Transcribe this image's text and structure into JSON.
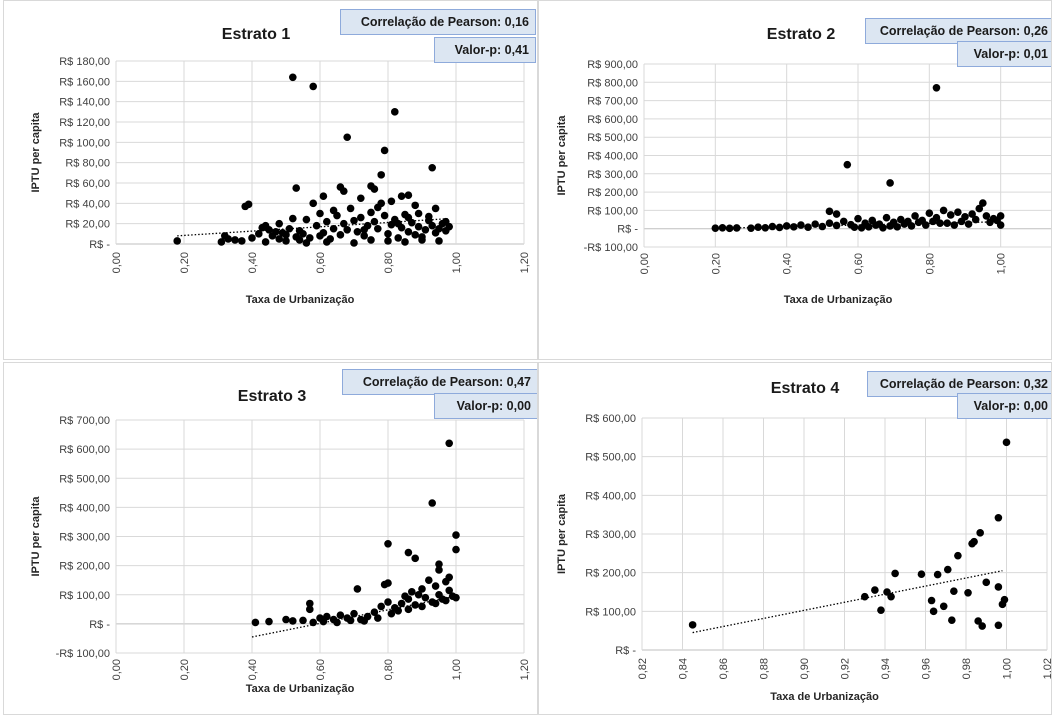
{
  "chart_data": [
    {
      "type": "scatter",
      "title": "Estrato 1",
      "xlabel": "Taxa de Urbanização",
      "ylabel": "IPTU per capita",
      "xlim": [
        0,
        1.2
      ],
      "ylim": [
        0,
        180
      ],
      "x_ticks": [
        "0,00",
        "0,20",
        "0,40",
        "0,60",
        "0,80",
        "1,00",
        "1,20"
      ],
      "y_ticks": [
        "R$ -",
        "R$ 20,00",
        "R$ 40,00",
        "R$ 60,00",
        "R$ 80,00",
        "R$ 100,00",
        "R$ 120,00",
        "R$ 140,00",
        "R$ 160,00",
        "R$ 180,00"
      ],
      "pearson_label": "Correlação de Pearson: 0,16",
      "pvalue_label": "Valor-p: 0,41",
      "trend": [
        [
          0.18,
          8
        ],
        [
          0.98,
          25
        ]
      ],
      "points": [
        [
          0.52,
          164
        ],
        [
          0.58,
          155
        ],
        [
          0.68,
          105
        ],
        [
          0.82,
          130
        ],
        [
          0.79,
          92
        ],
        [
          0.93,
          75
        ],
        [
          0.38,
          37
        ],
        [
          0.39,
          39
        ],
        [
          0.53,
          55
        ],
        [
          0.66,
          56
        ],
        [
          0.67,
          52
        ],
        [
          0.75,
          57
        ],
        [
          0.76,
          54
        ],
        [
          0.78,
          68
        ],
        [
          0.61,
          47
        ],
        [
          0.72,
          45
        ],
        [
          0.84,
          47
        ],
        [
          0.86,
          48
        ],
        [
          0.88,
          38
        ],
        [
          0.94,
          35
        ],
        [
          0.18,
          3
        ],
        [
          0.31,
          2
        ],
        [
          0.32,
          8
        ],
        [
          0.33,
          5
        ],
        [
          0.35,
          4
        ],
        [
          0.37,
          3
        ],
        [
          0.4,
          6
        ],
        [
          0.42,
          10
        ],
        [
          0.43,
          16
        ],
        [
          0.44,
          18
        ],
        [
          0.45,
          14
        ],
        [
          0.46,
          8
        ],
        [
          0.47,
          12
        ],
        [
          0.48,
          5
        ],
        [
          0.49,
          11
        ],
        [
          0.5,
          9
        ],
        [
          0.51,
          15
        ],
        [
          0.52,
          25
        ],
        [
          0.53,
          7
        ],
        [
          0.54,
          13
        ],
        [
          0.55,
          10
        ],
        [
          0.56,
          24
        ],
        [
          0.57,
          6
        ],
        [
          0.58,
          40
        ],
        [
          0.59,
          18
        ],
        [
          0.6,
          30
        ],
        [
          0.61,
          11
        ],
        [
          0.62,
          22
        ],
        [
          0.63,
          5
        ],
        [
          0.64,
          15
        ],
        [
          0.65,
          28
        ],
        [
          0.66,
          9
        ],
        [
          0.67,
          20
        ],
        [
          0.68,
          14
        ],
        [
          0.69,
          35
        ],
        [
          0.7,
          23
        ],
        [
          0.71,
          12
        ],
        [
          0.72,
          26
        ],
        [
          0.73,
          8
        ],
        [
          0.74,
          18
        ],
        [
          0.75,
          31
        ],
        [
          0.76,
          22
        ],
        [
          0.77,
          15
        ],
        [
          0.78,
          40
        ],
        [
          0.79,
          28
        ],
        [
          0.8,
          10
        ],
        [
          0.81,
          19
        ],
        [
          0.82,
          24
        ],
        [
          0.83,
          6
        ],
        [
          0.84,
          16
        ],
        [
          0.85,
          29
        ],
        [
          0.86,
          12
        ],
        [
          0.87,
          21
        ],
        [
          0.88,
          9
        ],
        [
          0.89,
          17
        ],
        [
          0.9,
          7
        ],
        [
          0.91,
          14
        ],
        [
          0.92,
          27
        ],
        [
          0.93,
          18
        ],
        [
          0.94,
          11
        ],
        [
          0.95,
          15
        ],
        [
          0.96,
          20
        ],
        [
          0.97,
          13
        ],
        [
          0.98,
          17
        ],
        [
          0.44,
          2
        ],
        [
          0.5,
          3
        ],
        [
          0.56,
          1
        ],
        [
          0.62,
          2
        ],
        [
          0.7,
          1
        ],
        [
          0.75,
          4
        ],
        [
          0.8,
          3
        ],
        [
          0.85,
          2
        ],
        [
          0.9,
          4
        ],
        [
          0.95,
          3
        ],
        [
          0.48,
          20
        ],
        [
          0.54,
          4
        ],
        [
          0.6,
          8
        ],
        [
          0.64,
          33
        ],
        [
          0.73,
          14
        ],
        [
          0.77,
          36
        ],
        [
          0.81,
          42
        ],
        [
          0.83,
          20
        ],
        [
          0.86,
          26
        ],
        [
          0.89,
          30
        ],
        [
          0.92,
          23
        ],
        [
          0.97,
          22
        ]
      ]
    },
    {
      "type": "scatter",
      "title": "Estrato 2",
      "xlabel": "Taxa de Urbanização",
      "ylabel": "IPTU per capita",
      "xlim": [
        0,
        1.2
      ],
      "ylim": [
        -100,
        900
      ],
      "x_ticks": [
        "0,00",
        "0,20",
        "0,40",
        "0,60",
        "0,80",
        "1,00",
        "1,20"
      ],
      "y_ticks": [
        "-R$ 100,00",
        "R$ -",
        "R$ 100,00",
        "R$ 200,00",
        "R$ 300,00",
        "R$ 400,00",
        "R$ 500,00",
        "R$ 600,00",
        "R$ 700,00",
        "R$ 800,00",
        "R$ 900,00"
      ],
      "pearson_label": "Correlação de Pearson: 0,26",
      "pvalue_label": "Valor-p: 0,01",
      "trend": [
        [
          0.2,
          2
        ],
        [
          1.0,
          38
        ]
      ],
      "points": [
        [
          0.82,
          770
        ],
        [
          0.57,
          350
        ],
        [
          0.69,
          250
        ],
        [
          0.52,
          95
        ],
        [
          0.54,
          80
        ],
        [
          0.2,
          3
        ],
        [
          0.22,
          5
        ],
        [
          0.24,
          2
        ],
        [
          0.26,
          4
        ],
        [
          0.3,
          3
        ],
        [
          0.32,
          8
        ],
        [
          0.34,
          5
        ],
        [
          0.36,
          12
        ],
        [
          0.38,
          7
        ],
        [
          0.4,
          15
        ],
        [
          0.42,
          10
        ],
        [
          0.44,
          20
        ],
        [
          0.46,
          8
        ],
        [
          0.48,
          25
        ],
        [
          0.5,
          12
        ],
        [
          0.52,
          30
        ],
        [
          0.54,
          18
        ],
        [
          0.56,
          40
        ],
        [
          0.58,
          22
        ],
        [
          0.6,
          55
        ],
        [
          0.62,
          30
        ],
        [
          0.64,
          45
        ],
        [
          0.66,
          25
        ],
        [
          0.68,
          60
        ],
        [
          0.7,
          35
        ],
        [
          0.72,
          50
        ],
        [
          0.74,
          40
        ],
        [
          0.76,
          70
        ],
        [
          0.78,
          45
        ],
        [
          0.8,
          85
        ],
        [
          0.82,
          60
        ],
        [
          0.84,
          100
        ],
        [
          0.86,
          75
        ],
        [
          0.88,
          90
        ],
        [
          0.9,
          65
        ],
        [
          0.92,
          80
        ],
        [
          0.94,
          110
        ],
        [
          0.95,
          140
        ],
        [
          0.96,
          70
        ],
        [
          0.98,
          55
        ],
        [
          1.0,
          70
        ],
        [
          1.0,
          20
        ],
        [
          0.85,
          30
        ],
        [
          0.87,
          20
        ],
        [
          0.89,
          40
        ],
        [
          0.91,
          25
        ],
        [
          0.93,
          50
        ],
        [
          0.79,
          20
        ],
        [
          0.77,
          35
        ],
        [
          0.75,
          15
        ],
        [
          0.73,
          25
        ],
        [
          0.71,
          10
        ],
        [
          0.69,
          15
        ],
        [
          0.67,
          5
        ],
        [
          0.65,
          20
        ],
        [
          0.63,
          10
        ],
        [
          0.61,
          5
        ],
        [
          0.59,
          8
        ],
        [
          0.81,
          40
        ],
        [
          0.83,
          30
        ],
        [
          0.97,
          35
        ],
        [
          0.99,
          45
        ]
      ]
    },
    {
      "type": "scatter",
      "title": "Estrato 3",
      "xlabel": "Taxa de Urbanização",
      "ylabel": "IPTU per capita",
      "xlim": [
        0,
        1.2
      ],
      "ylim": [
        -100,
        700
      ],
      "x_ticks": [
        "0,00",
        "0,20",
        "0,40",
        "0,60",
        "0,80",
        "1,00",
        "1,20"
      ],
      "y_ticks": [
        "-R$ 100,00",
        "R$ -",
        "R$ 100,00",
        "R$ 200,00",
        "R$ 300,00",
        "R$ 400,00",
        "R$ 500,00",
        "R$ 600,00",
        "R$ 700,00"
      ],
      "pearson_label": "Correlação de Pearson: 0,47",
      "pvalue_label": "Valor-p: 0,00",
      "trend": [
        [
          0.4,
          -45
        ],
        [
          1.0,
          95
        ]
      ],
      "points": [
        [
          0.98,
          620
        ],
        [
          0.93,
          415
        ],
        [
          0.8,
          275
        ],
        [
          1.0,
          305
        ],
        [
          1.0,
          255
        ],
        [
          0.86,
          245
        ],
        [
          0.88,
          225
        ],
        [
          0.95,
          205
        ],
        [
          0.95,
          185
        ],
        [
          0.98,
          160
        ],
        [
          0.8,
          140
        ],
        [
          0.79,
          135
        ],
        [
          0.71,
          120
        ],
        [
          0.57,
          70
        ],
        [
          0.57,
          50
        ],
        [
          0.41,
          5
        ],
        [
          0.45,
          8
        ],
        [
          0.5,
          15
        ],
        [
          0.52,
          10
        ],
        [
          0.55,
          12
        ],
        [
          0.58,
          5
        ],
        [
          0.6,
          20
        ],
        [
          0.62,
          25
        ],
        [
          0.64,
          15
        ],
        [
          0.66,
          30
        ],
        [
          0.68,
          20
        ],
        [
          0.7,
          35
        ],
        [
          0.72,
          15
        ],
        [
          0.74,
          25
        ],
        [
          0.76,
          40
        ],
        [
          0.78,
          60
        ],
        [
          0.8,
          75
        ],
        [
          0.82,
          55
        ],
        [
          0.84,
          70
        ],
        [
          0.85,
          95
        ],
        [
          0.86,
          85
        ],
        [
          0.87,
          110
        ],
        [
          0.88,
          65
        ],
        [
          0.89,
          100
        ],
        [
          0.9,
          120
        ],
        [
          0.91,
          90
        ],
        [
          0.92,
          150
        ],
        [
          0.93,
          75
        ],
        [
          0.94,
          130
        ],
        [
          0.95,
          100
        ],
        [
          0.96,
          85
        ],
        [
          0.97,
          145
        ],
        [
          0.98,
          115
        ],
        [
          0.99,
          95
        ],
        [
          1.0,
          90
        ],
        [
          0.83,
          45
        ],
        [
          0.81,
          35
        ],
        [
          0.77,
          20
        ],
        [
          0.73,
          10
        ],
        [
          0.69,
          12
        ],
        [
          0.65,
          5
        ],
        [
          0.61,
          8
        ],
        [
          0.86,
          50
        ],
        [
          0.9,
          60
        ],
        [
          0.94,
          70
        ],
        [
          0.97,
          80
        ]
      ]
    },
    {
      "type": "scatter",
      "title": "Estrato 4",
      "xlabel": "Taxa de Urbanização",
      "ylabel": "IPTU per capita",
      "xlim": [
        0.82,
        1.02
      ],
      "ylim": [
        0,
        600
      ],
      "x_ticks": [
        "0,82",
        "0,84",
        "0,86",
        "0,88",
        "0,90",
        "0,92",
        "0,94",
        "0,96",
        "0,98",
        "1,00",
        "1,02"
      ],
      "y_ticks": [
        "R$ -",
        "R$ 100,00",
        "R$ 200,00",
        "R$ 300,00",
        "R$ 400,00",
        "R$ 500,00",
        "R$ 600,00"
      ],
      "pearson_label": "Correlação de Pearson: 0,32",
      "pvalue_label": "Valor-p: 0,00",
      "trend": [
        [
          0.845,
          45
        ],
        [
          0.998,
          205
        ]
      ],
      "points": [
        [
          0.845,
          65
        ],
        [
          0.93,
          138
        ],
        [
          0.935,
          155
        ],
        [
          0.938,
          103
        ],
        [
          0.941,
          150
        ],
        [
          0.943,
          138
        ],
        [
          0.945,
          198
        ],
        [
          0.958,
          196
        ],
        [
          0.963,
          128
        ],
        [
          0.964,
          100
        ],
        [
          0.966,
          195
        ],
        [
          0.969,
          113
        ],
        [
          0.971,
          208
        ],
        [
          0.973,
          77
        ],
        [
          0.974,
          152
        ],
        [
          0.976,
          244
        ],
        [
          0.981,
          148
        ],
        [
          0.983,
          275
        ],
        [
          0.984,
          280
        ],
        [
          0.986,
          75
        ],
        [
          0.987,
          303
        ],
        [
          0.988,
          62
        ],
        [
          0.99,
          175
        ],
        [
          0.996,
          342
        ],
        [
          0.996,
          163
        ],
        [
          0.996,
          64
        ],
        [
          0.998,
          118
        ],
        [
          0.999,
          130
        ],
        [
          1.0,
          537
        ]
      ]
    }
  ]
}
